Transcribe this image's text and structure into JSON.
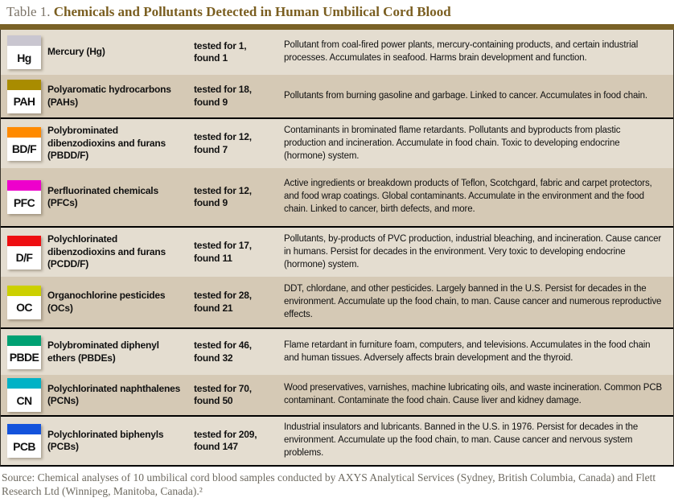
{
  "title": {
    "prefix": "Table 1.",
    "text": "Chemicals and Pollutants Detected in Human Umbilical Cord Blood"
  },
  "colors": {
    "title_accent": "#7a5e20",
    "top_rule": "#7a6227",
    "row_light": "#e4ddd0",
    "row_dark": "#d5c9b5",
    "group_divider": "#000000"
  },
  "rows": [
    {
      "abbr": "Hg",
      "color": "#c9c6d0",
      "name": "Mercury (Hg)",
      "tested": "tested for 1,",
      "found": "found 1",
      "description": "Pollutant from coal-fired power plants, mercury-containing products, and certain industrial processes. Accumulates in seafood. Harms brain development and function."
    },
    {
      "abbr": "PAH",
      "color": "#a98c00",
      "name": "Polyaromatic hydrocarbons (PAHs)",
      "tested": "tested for 18,",
      "found": "found 9",
      "description": "Pollutants from burning gasoline and garbage. Linked to cancer. Accumulates in food chain."
    },
    {
      "abbr": "BD/F",
      "color": "#ff8a00",
      "name": "Polybrominated dibenzodioxins and furans (PBDD/F)",
      "tested": "tested for 12,",
      "found": "found 7",
      "description": "Contaminants in brominated flame retardants. Pollutants and byproducts from plastic production and incineration. Accumulate in food chain. Toxic to developing endocrine (hormone) system."
    },
    {
      "abbr": "PFC",
      "color": "#ee00cc",
      "name": "Perfluorinated chemicals (PFCs)",
      "tested": "tested for 12,",
      "found": "found 9",
      "description": "Active ingredients or breakdown products of Teflon, Scotchgard, fabric and carpet protectors, and food wrap coatings. Global contaminants. Accumulate in the environment and the food chain. Linked to cancer, birth defects, and more."
    },
    {
      "abbr": "D/F",
      "color": "#ee0e11",
      "name": "Polychlorinated dibenzodioxins and furans (PCDD/F)",
      "tested": "tested for 17,",
      "found": "found 11",
      "description": "Pollutants, by-products of PVC production, industrial bleaching, and incineration. Cause cancer in humans. Persist for decades in the environment. Very toxic to developing endocrine (hormone) system."
    },
    {
      "abbr": "OC",
      "color": "#ccd000",
      "name": "Organochlorine pesticides (OCs)",
      "tested": "tested for 28,",
      "found": "found 21",
      "description": "DDT, chlordane, and other pesticides. Largely banned in the U.S. Persist for decades in the environment. Accumulate up the food chain, to man. Cause cancer and numerous reproductive effects."
    },
    {
      "abbr": "PBDE",
      "color": "#00a173",
      "name": "Polybrominated diphenyl ethers (PBDEs)",
      "tested": "tested for 46,",
      "found": "found 32",
      "description": "Flame retardant in furniture foam, computers, and televisions. Accumulates in the food chain and human tissues. Adversely affects brain development and the thyroid."
    },
    {
      "abbr": "CN",
      "color": "#00b2c6",
      "name": "Polychlorinated naphthalenes (PCNs)",
      "tested": "tested for 70,",
      "found": "found 50",
      "description": "Wood preservatives, varnishes, machine lubricating oils, and waste incineration. Common PCB contaminant. Contaminate the food chain. Cause liver and kidney damage."
    },
    {
      "abbr": "PCB",
      "color": "#1353dc",
      "name": "Polychlorinated biphenyls (PCBs)",
      "tested": "tested for 209,",
      "found": "found 147",
      "description": "Industrial insulators and lubricants. Banned in the U.S. in 1976. Persist for decades in the environment. Accumulate up the food chain, to man. Cause cancer and nervous system problems."
    }
  ],
  "source": "Source: Chemical analyses of 10 umbilical cord blood samples conducted by AXYS Analytical Services (Sydney, British Columbia, Canada) and Flett Research Ltd (Winnipeg, Manitoba, Canada).²"
}
